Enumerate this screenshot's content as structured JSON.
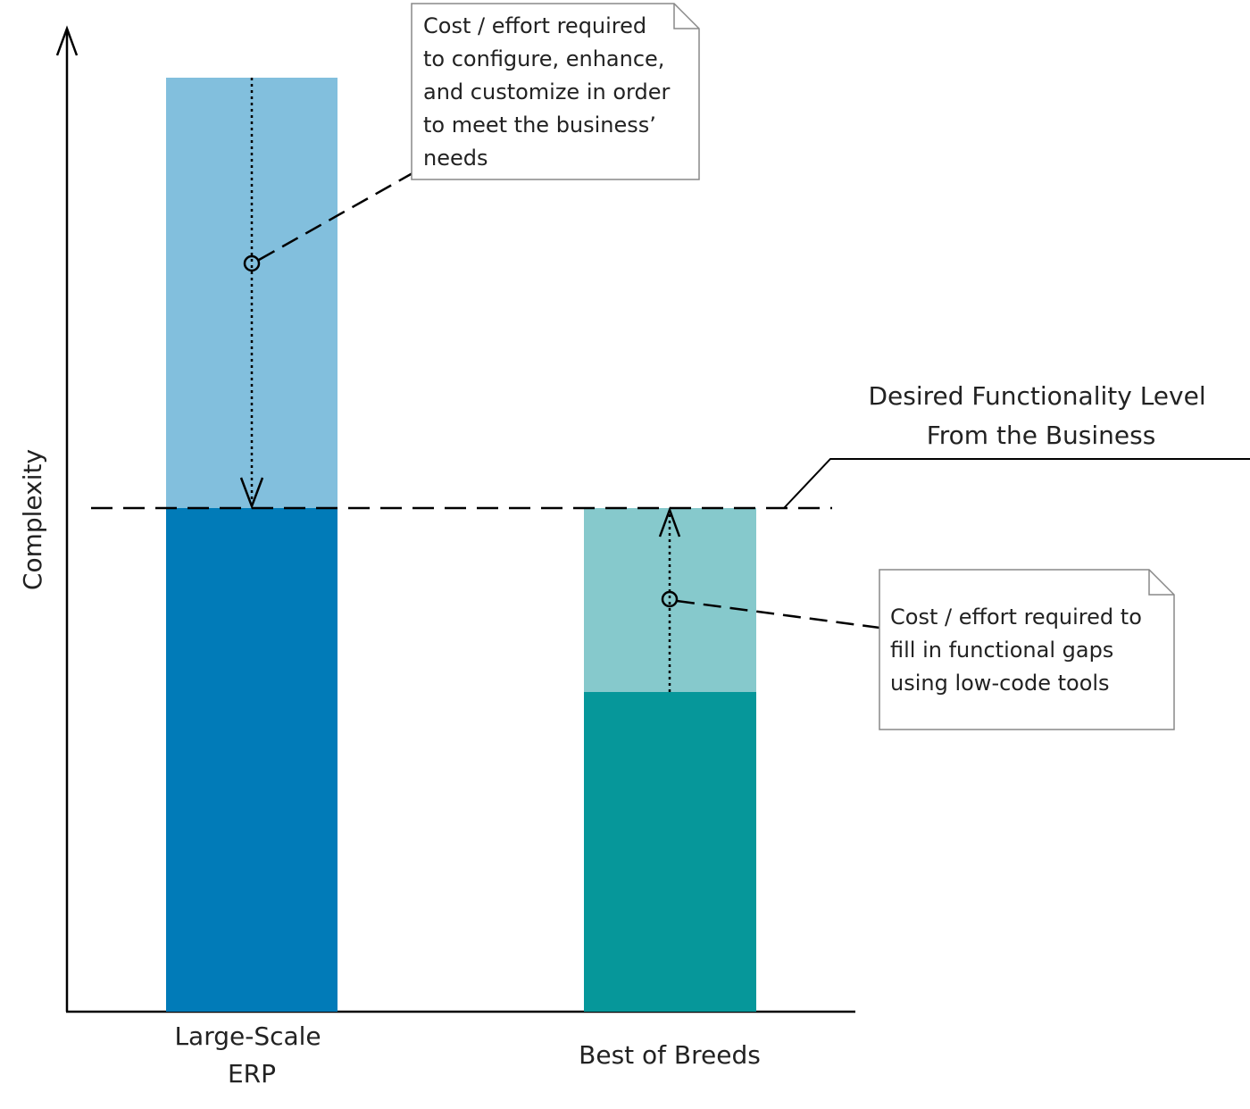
{
  "axis": {
    "y_label": "Complexity"
  },
  "bars": [
    {
      "name": "large-scale-erp",
      "label_lines": [
        "Large-Scale",
        "ERP"
      ],
      "base_color": "#017bb8",
      "overhang_color": "#82bfdd"
    },
    {
      "name": "best-of-breeds",
      "label_lines": [
        "Best of Breeds"
      ],
      "base_color": "#06979a",
      "overhang_color": "#86c9cc"
    }
  ],
  "desired_level": {
    "label_lines": [
      "Desired Functionality Level",
      "From the Business"
    ]
  },
  "notes": {
    "erp": {
      "lines": [
        "Cost / effort required",
        "to configure, enhance,",
        "and customize in order",
        "to meet the business’",
        "needs"
      ]
    },
    "bob": {
      "lines": [
        "Cost / effort required to",
        "fill in functional gaps",
        "using low-code tools"
      ]
    }
  }
}
